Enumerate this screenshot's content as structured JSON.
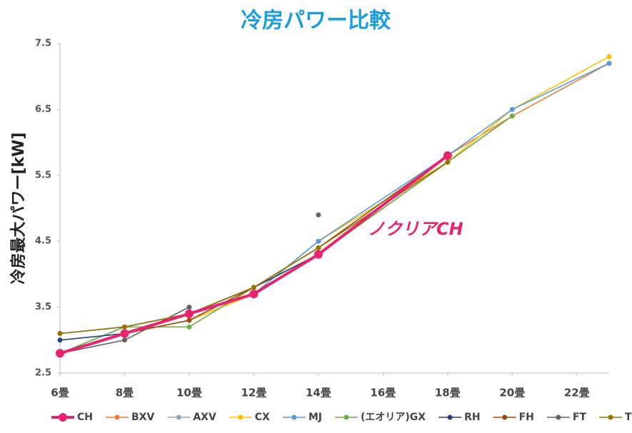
{
  "chart_data": {
    "type": "line",
    "title": "冷房パワー比較",
    "y_label": "冷房最大パワー[kW]",
    "annotation": "ノクリアCH",
    "xlim": [
      6,
      23
    ],
    "xticks": [
      {
        "value": 6,
        "label": "6畳"
      },
      {
        "value": 8,
        "label": "8畳"
      },
      {
        "value": 10,
        "label": "10畳"
      },
      {
        "value": 12,
        "label": "12畳"
      },
      {
        "value": 14,
        "label": "14畳"
      },
      {
        "value": 16,
        "label": "16畳"
      },
      {
        "value": 18,
        "label": "18畳"
      },
      {
        "value": 20,
        "label": "20畳"
      },
      {
        "value": 22,
        "label": "22畳"
      }
    ],
    "ylim": [
      2.5,
      7.5
    ],
    "yticks": [
      2.5,
      3.5,
      4.5,
      5.5,
      6.5,
      7.5
    ],
    "series": [
      {
        "name": "CH",
        "color": "#e8246e",
        "x": [
          6,
          8,
          10,
          12,
          14,
          18
        ],
        "values": [
          2.8,
          3.1,
          3.4,
          3.7,
          4.3,
          5.8
        ]
      },
      {
        "name": "BXV",
        "color": "#ed7d31",
        "x": [
          6,
          8,
          10,
          12,
          14,
          18,
          20,
          23
        ],
        "values": [
          2.8,
          3.1,
          3.3,
          3.7,
          4.3,
          5.8,
          6.4,
          7.2
        ]
      },
      {
        "name": "AXV",
        "color": "#8fa3b5",
        "x": [
          6,
          8,
          10,
          12,
          14,
          18,
          20
        ],
        "values": [
          2.8,
          3.2,
          3.4,
          3.8,
          4.3,
          5.7,
          6.4
        ]
      },
      {
        "name": "CX",
        "color": "#ffc000",
        "x": [
          6,
          8,
          10,
          12,
          14,
          18,
          20,
          23
        ],
        "values": [
          2.8,
          3.1,
          3.3,
          3.7,
          4.5,
          5.7,
          6.5,
          7.3
        ]
      },
      {
        "name": "MJ",
        "color": "#5b9bd5",
        "x": [
          6,
          8,
          10,
          12,
          14,
          18,
          20,
          23
        ],
        "values": [
          3.1,
          3.2,
          3.4,
          3.7,
          4.5,
          5.8,
          6.5,
          7.2
        ]
      },
      {
        "name": "(エオリア)GX",
        "color": "#70ad47",
        "x": [
          6,
          8,
          10,
          12,
          14,
          18,
          20
        ],
        "values": [
          2.8,
          3.2,
          3.2,
          3.8,
          4.3,
          5.7,
          6.4
        ]
      },
      {
        "name": "RH",
        "color": "#264478",
        "x": [
          6,
          8,
          10,
          12,
          14,
          18
        ],
        "values": [
          3.0,
          3.1,
          3.4,
          3.8,
          4.3,
          5.8
        ]
      },
      {
        "name": "FH",
        "color": "#9e480e",
        "x": [
          6,
          8,
          10,
          12,
          14,
          18
        ],
        "values": [
          2.8,
          3.1,
          3.3,
          3.8,
          4.4,
          5.8
        ]
      },
      {
        "name": "FT",
        "color": "#636363",
        "x": [
          6,
          8,
          10,
          12,
          14
        ],
        "values": [
          2.8,
          3.0,
          3.5,
          null,
          4.9
        ]
      },
      {
        "name": "T",
        "color": "#997300",
        "x": [
          6,
          8,
          10,
          12,
          14,
          18
        ],
        "values": [
          3.1,
          3.2,
          3.4,
          3.8,
          4.4,
          5.7
        ]
      }
    ]
  }
}
